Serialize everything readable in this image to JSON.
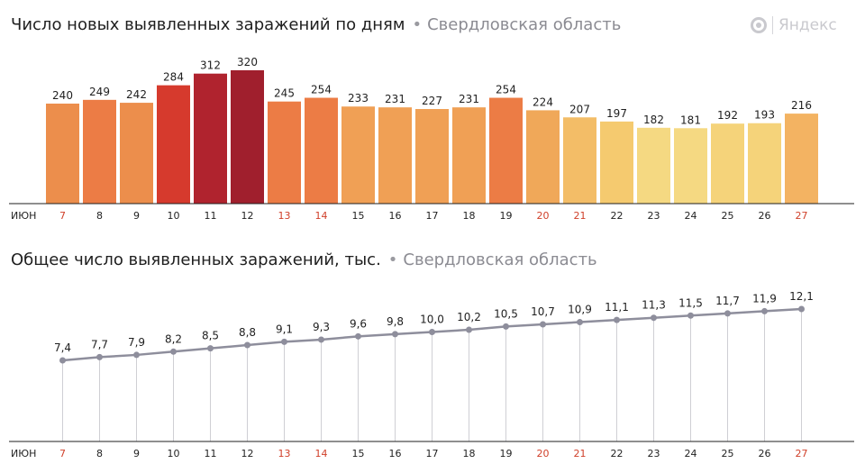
{
  "header": {
    "title1": "Число новых выявленных заражений по дням",
    "title2": "Общее число выявленных заражений, тыс.",
    "separator": "•",
    "region": "Свердловская область",
    "logo_text": "Яндекс"
  },
  "colors": {
    "weekday_tick": "#1f1f1f",
    "weekend_tick": "#d0402a",
    "line": "#8e8e9c",
    "dot": "#8e8e9c",
    "drop": "#cfcfd4",
    "axis": "#1f1f1f"
  },
  "chart_data": [
    {
      "type": "bar",
      "title": "Число новых выявленных заражений по дням",
      "subtitle": "Свердловская область",
      "month_label": "ИЮН",
      "categories": [
        "7",
        "8",
        "9",
        "10",
        "11",
        "12",
        "13",
        "14",
        "15",
        "16",
        "17",
        "18",
        "19",
        "20",
        "21",
        "22",
        "23",
        "24",
        "25",
        "26",
        "27"
      ],
      "weekend": [
        "7",
        "13",
        "14",
        "20",
        "21",
        "27"
      ],
      "values": [
        240,
        249,
        242,
        284,
        312,
        320,
        245,
        254,
        233,
        231,
        227,
        231,
        254,
        224,
        207,
        197,
        182,
        181,
        192,
        193,
        216
      ],
      "bar_colors": [
        "#ec8e4c",
        "#ec7c45",
        "#ec8e4c",
        "#d63a2d",
        "#b0232e",
        "#a01f2d",
        "#ec7c45",
        "#ec7c45",
        "#f0a055",
        "#f0a055",
        "#f0a055",
        "#f0a055",
        "#ec7c45",
        "#f0a859",
        "#f3bd67",
        "#f5ca6f",
        "#f5d982",
        "#f5d982",
        "#f5d37a",
        "#f5d37a",
        "#f3b362"
      ],
      "ylim": [
        0,
        330
      ]
    },
    {
      "type": "line",
      "title": "Общее число выявленных заражений, тыс.",
      "subtitle": "Свердловская область",
      "month_label": "ИЮН",
      "categories": [
        "7",
        "8",
        "9",
        "10",
        "11",
        "12",
        "13",
        "14",
        "15",
        "16",
        "17",
        "18",
        "19",
        "20",
        "21",
        "22",
        "23",
        "24",
        "25",
        "26",
        "27"
      ],
      "weekend": [
        "7",
        "13",
        "14",
        "20",
        "21",
        "27"
      ],
      "values": [
        7.4,
        7.7,
        7.9,
        8.2,
        8.5,
        8.8,
        9.1,
        9.3,
        9.6,
        9.8,
        10.0,
        10.2,
        10.5,
        10.7,
        10.9,
        11.1,
        11.3,
        11.5,
        11.7,
        11.9,
        12.1
      ],
      "value_labels": [
        "7,4",
        "7,7",
        "7,9",
        "8,2",
        "8,5",
        "8,8",
        "9,1",
        "9,3",
        "9,6",
        "9,8",
        "10,0",
        "10,2",
        "10,5",
        "10,7",
        "10,9",
        "11,1",
        "11,3",
        "11,5",
        "11,7",
        "11,9",
        "12,1"
      ],
      "ylim": [
        0,
        12.1
      ]
    }
  ]
}
